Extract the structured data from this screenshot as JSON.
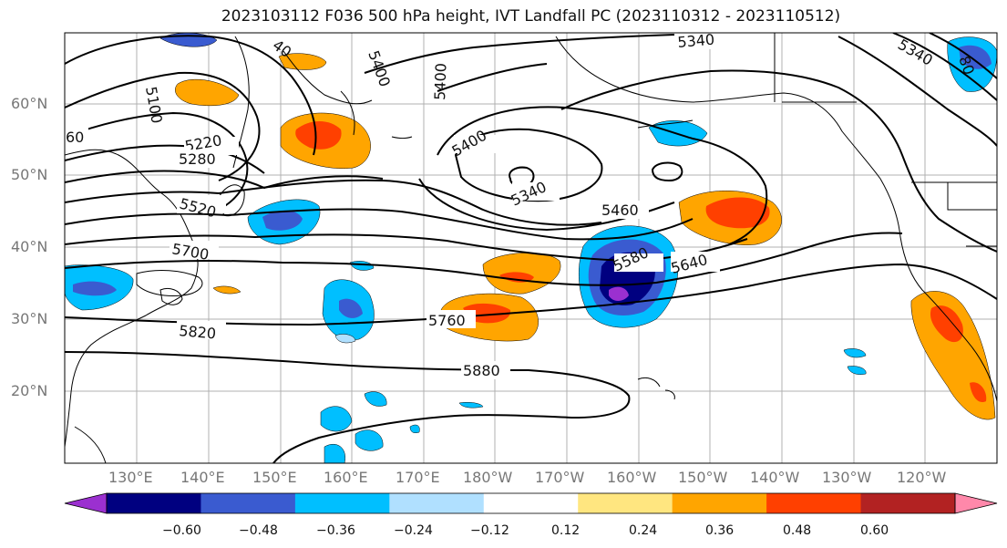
{
  "title": "2023103112 F036 500 hPa height, IVT Landfall PC (2023110312 - 2023110512)",
  "lat_labels": [
    "60°N",
    "50°N",
    "40°N",
    "30°N",
    "20°N"
  ],
  "lon_labels": [
    "130°E",
    "140°E",
    "150°E",
    "160°E",
    "170°E",
    "180°W",
    "170°W",
    "160°W",
    "150°W",
    "140°W",
    "130°W",
    "120°W"
  ],
  "contour_labels": [
    "40",
    "5340",
    "5400",
    "5400",
    "5340",
    "5100",
    "60",
    "5220",
    "5280",
    "5400",
    "5340",
    "5460",
    "5520",
    "5700",
    "5580",
    "5640",
    "5760",
    "5820",
    "5880",
    "80"
  ],
  "colorbar": {
    "colors": [
      "#9b30d0",
      "#000080",
      "#3a5bd0",
      "#00bfff",
      "#b0e0ff",
      "#ffffff",
      "#ffe680",
      "#ffa500",
      "#ff4000",
      "#b22222",
      "#ff88aa"
    ],
    "tick_labels": [
      "−0.60",
      "−0.48",
      "−0.36",
      "−0.24",
      "−0.12",
      "0.12",
      "0.24",
      "0.36",
      "0.48",
      "0.60"
    ]
  }
}
